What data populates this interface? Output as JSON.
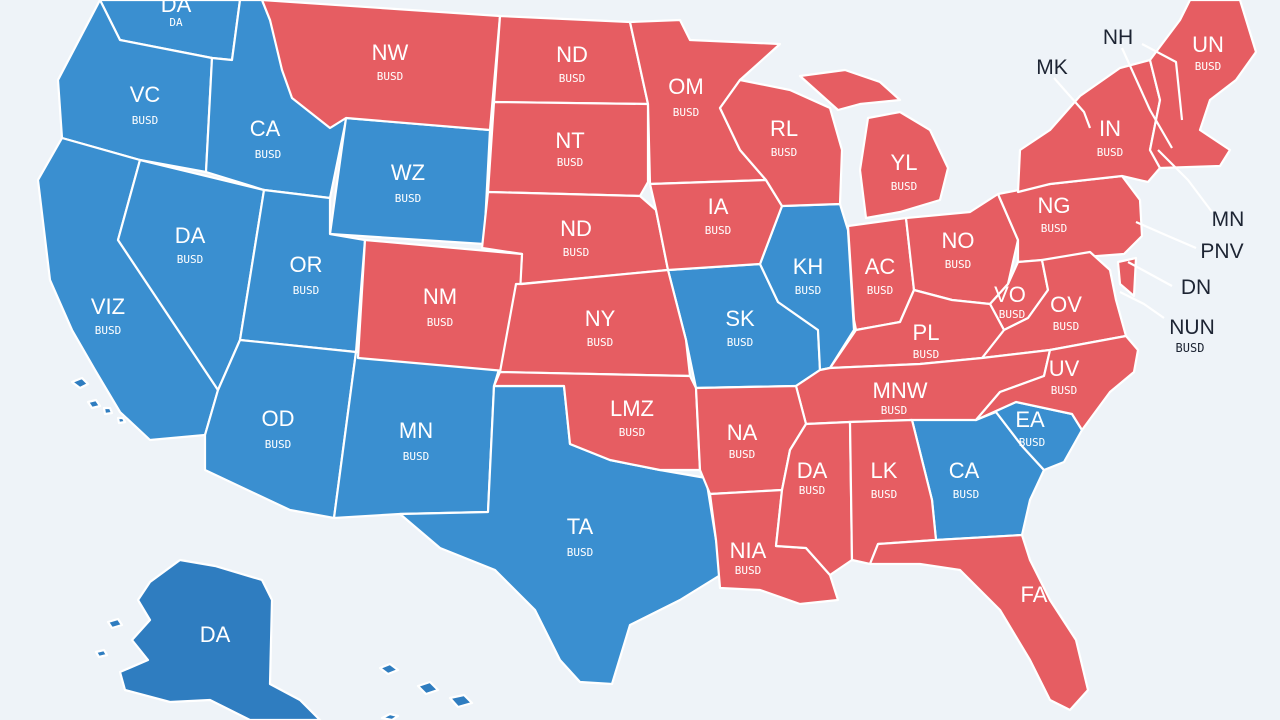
{
  "colors": {
    "blue": "#3a8fd0",
    "blue_dark": "#2f7dc0",
    "red": "#e65d62",
    "red_dark": "#dc4c55",
    "background": "#eef3f8"
  },
  "regions": [
    {
      "id": "r-wa",
      "party": "blue",
      "abbr": "DA",
      "code": "DA"
    },
    {
      "id": "r-or",
      "party": "blue",
      "abbr": "VC",
      "code": "BUSD"
    },
    {
      "id": "r-id",
      "party": "blue",
      "abbr": "CA",
      "code": "BUSD"
    },
    {
      "id": "r-ca",
      "party": "blue",
      "abbr": "VIZ",
      "code": "BUSD"
    },
    {
      "id": "r-nv",
      "party": "blue",
      "abbr": "DA",
      "code": "BUSD"
    },
    {
      "id": "r-wy",
      "party": "blue",
      "abbr": "WZ",
      "code": "BUSD"
    },
    {
      "id": "r-ut",
      "party": "blue",
      "abbr": "OR",
      "code": "BUSD"
    },
    {
      "id": "r-az",
      "party": "blue",
      "abbr": "OD",
      "code": "BUSD"
    },
    {
      "id": "r-nm",
      "party": "blue",
      "abbr": "MN",
      "code": "BUSD"
    },
    {
      "id": "r-tx",
      "party": "blue",
      "abbr": "TA",
      "code": "BUSD"
    },
    {
      "id": "r-mo",
      "party": "blue",
      "abbr": "SK",
      "code": "BUSD"
    },
    {
      "id": "r-il",
      "party": "blue",
      "abbr": "KH",
      "code": "BUSD"
    },
    {
      "id": "r-ga",
      "party": "blue",
      "abbr": "CA",
      "code": "BUSD"
    },
    {
      "id": "r-sc",
      "party": "blue",
      "abbr": "EA",
      "code": "BUSD"
    },
    {
      "id": "r-ak",
      "party": "blue",
      "abbr": "DA",
      "code": ""
    },
    {
      "id": "r-mt",
      "party": "red",
      "abbr": "NW",
      "code": "BUSD"
    },
    {
      "id": "r-nd",
      "party": "red",
      "abbr": "ND",
      "code": "BUSD"
    },
    {
      "id": "r-sd",
      "party": "red",
      "abbr": "NT",
      "code": "BUSD"
    },
    {
      "id": "r-ne",
      "party": "red",
      "abbr": "ND",
      "code": "BUSD"
    },
    {
      "id": "r-co",
      "party": "red",
      "abbr": "NM",
      "code": "BUSD"
    },
    {
      "id": "r-ks",
      "party": "red",
      "abbr": "NY",
      "code": "BUSD"
    },
    {
      "id": "r-ok",
      "party": "red",
      "abbr": "LMZ",
      "code": "BUSD"
    },
    {
      "id": "r-mn",
      "party": "red",
      "abbr": "OM",
      "code": "BUSD"
    },
    {
      "id": "r-ia",
      "party": "red",
      "abbr": "IA",
      "code": "BUSD"
    },
    {
      "id": "r-wi",
      "party": "red",
      "abbr": "RL",
      "code": "BUSD"
    },
    {
      "id": "r-mi",
      "party": "red",
      "abbr": "YL",
      "code": "BUSD"
    },
    {
      "id": "r-in",
      "party": "red",
      "abbr": "AC",
      "code": "BUSD"
    },
    {
      "id": "r-oh",
      "party": "red",
      "abbr": "NO",
      "code": "BUSD"
    },
    {
      "id": "r-pa",
      "party": "red",
      "abbr": "NG",
      "code": "BUSD"
    },
    {
      "id": "r-ny",
      "party": "red",
      "abbr": "IN",
      "code": "BUSD"
    },
    {
      "id": "r-ne2",
      "party": "red",
      "abbr": "UN",
      "code": "BUSD"
    },
    {
      "id": "r-wv",
      "party": "red",
      "abbr": "VO",
      "code": "BUSD"
    },
    {
      "id": "r-va",
      "party": "red",
      "abbr": "OV",
      "code": "BUSD"
    },
    {
      "id": "r-ky",
      "party": "red",
      "abbr": "PL",
      "code": "BUSD"
    },
    {
      "id": "r-tn",
      "party": "red",
      "abbr": "MNW",
      "code": "BUSD"
    },
    {
      "id": "r-nc",
      "party": "red",
      "abbr": "UV",
      "code": "BUSD"
    },
    {
      "id": "r-ar",
      "party": "red",
      "abbr": "NA",
      "code": "BUSD"
    },
    {
      "id": "r-la",
      "party": "red",
      "abbr": "NIA",
      "code": "BUSD"
    },
    {
      "id": "r-ms",
      "party": "red",
      "abbr": "DA",
      "code": "BUSD"
    },
    {
      "id": "r-al",
      "party": "red",
      "abbr": "LK",
      "code": "BUSD"
    },
    {
      "id": "r-fl",
      "party": "red",
      "abbr": "FA",
      "code": ""
    }
  ],
  "callouts": [
    {
      "abbr": "NH",
      "code": ""
    },
    {
      "abbr": "MK",
      "code": ""
    },
    {
      "abbr": "MN",
      "code": ""
    },
    {
      "abbr": "PNV",
      "code": ""
    },
    {
      "abbr": "DN",
      "code": ""
    },
    {
      "abbr": "NUN",
      "code": "BUSD"
    }
  ]
}
